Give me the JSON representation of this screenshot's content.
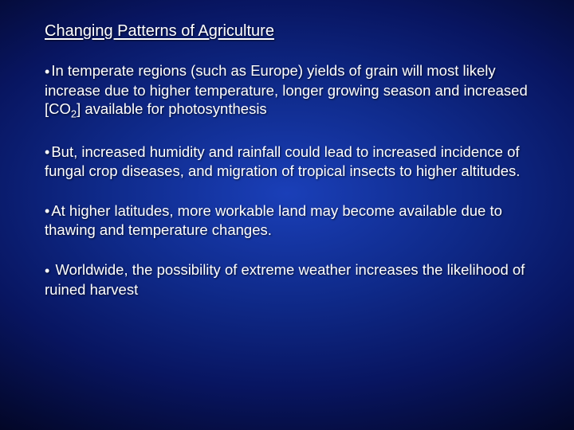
{
  "background": {
    "gradient_center": "#1a3fb8",
    "gradient_mid": "#0f2a8a",
    "gradient_outer": "#081560",
    "gradient_edge": "#020520"
  },
  "text_color": "#ffffff",
  "title_fontsize": 20,
  "body_fontsize": 18.5,
  "font_family": "Verdana",
  "title": "Changing Patterns of Agriculture",
  "bullets": [
    {
      "pre": "In temperate regions (such as Europe) yields of grain will most likely increase due to higher temperature, longer growing season and increased [CO",
      "sub": "2",
      "post": "] available for photosynthesis"
    },
    {
      "text": "But, increased humidity and rainfall could lead to increased incidence of fungal crop diseases, and migration of tropical insects to higher altitudes."
    },
    {
      "text": "At higher latitudes, more workable land may become available due to thawing and temperature changes."
    },
    {
      "text": " Worldwide, the possibility of extreme weather increases the likelihood of ruined harvest"
    }
  ]
}
